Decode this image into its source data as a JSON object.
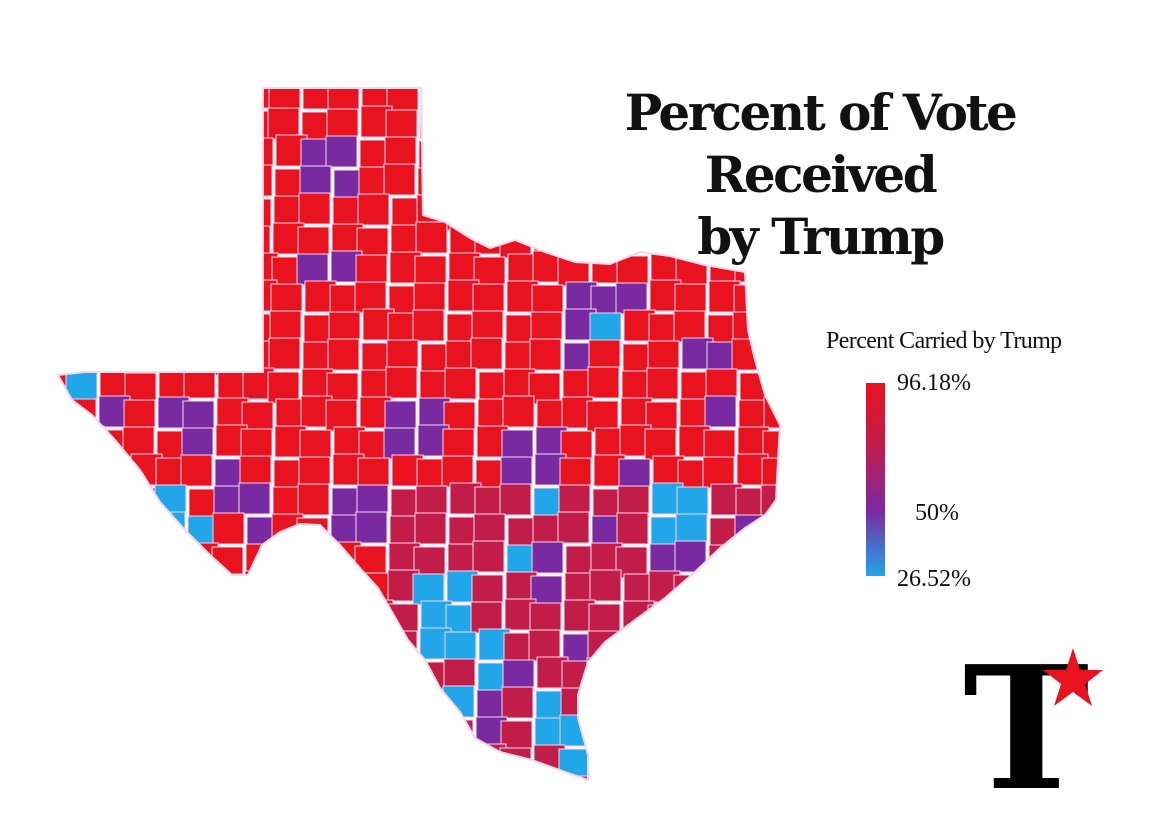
{
  "title": {
    "line1": "Percent of Vote Received",
    "line2": "by Trump"
  },
  "legend": {
    "title": "Percent Carried by Trump",
    "max_label": "96.18%",
    "mid_label": "50%",
    "min_label": "26.52%",
    "max_value": 96.18,
    "mid_value": 50,
    "min_value": 26.52,
    "colors": {
      "high": "#e8131f",
      "mid_high": "#c21d48",
      "mid": "#7a2aa0",
      "low": "#21a6ea"
    }
  },
  "map": {
    "region": "Texas counties",
    "county_border_color": "#f4d6ef"
  },
  "logo": {
    "letter": "T",
    "star_color": "#e8131f"
  }
}
